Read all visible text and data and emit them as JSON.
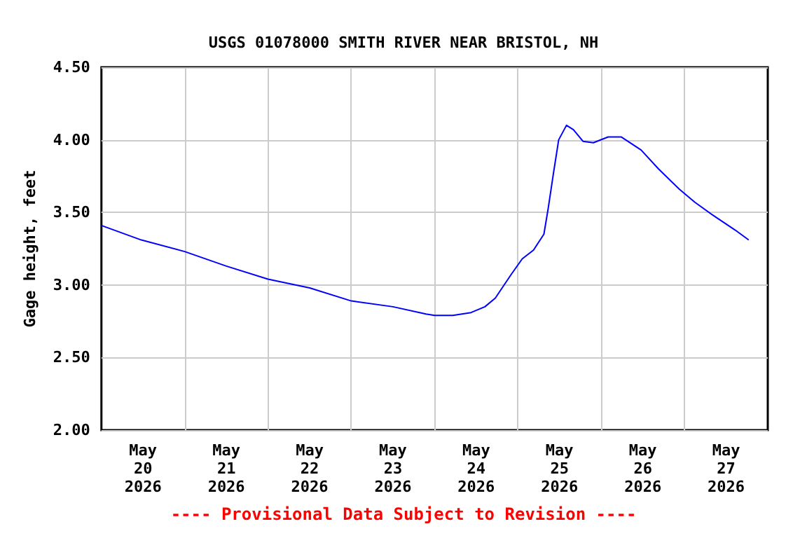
{
  "chart_data": {
    "type": "line",
    "title": "USGS 01078000 SMITH RIVER NEAR BRISTOL, NH",
    "ylabel": "Gage height, feet",
    "annotations": [
      "---- Provisional Data Subject to Revision ----"
    ],
    "x": [
      "2026-05-20T00:00",
      "2026-05-20T11:30",
      "2026-05-21T00:00",
      "2026-05-21T12:00",
      "2026-05-22T00:00",
      "2026-05-22T12:00",
      "2026-05-23T00:00",
      "2026-05-23T12:00",
      "2026-05-23T21:30",
      "2026-05-24T00:00",
      "2026-05-24T05:15",
      "2026-05-24T10:30",
      "2026-05-24T14:30",
      "2026-05-24T17:30",
      "2026-05-24T22:00",
      "2026-05-25T01:15",
      "2026-05-25T04:30",
      "2026-05-25T07:30",
      "2026-05-25T08:45",
      "2026-05-25T10:15",
      "2026-05-25T11:45",
      "2026-05-25T14:00",
      "2026-05-25T16:00",
      "2026-05-25T18:45",
      "2026-05-25T21:45",
      "2026-05-26T02:00",
      "2026-05-26T05:45",
      "2026-05-26T11:30",
      "2026-05-26T16:30",
      "2026-05-26T22:30",
      "2026-05-27T03:00",
      "2026-05-27T08:15",
      "2026-05-27T14:30",
      "2026-05-27T18:30"
    ],
    "series": [
      {
        "color": "#0000ff",
        "values": [
          3.41,
          3.31,
          3.23,
          3.13,
          3.04,
          2.98,
          2.89,
          2.85,
          2.8,
          2.79,
          2.79,
          2.81,
          2.85,
          2.91,
          3.07,
          3.18,
          3.24,
          3.35,
          3.53,
          3.77,
          4.0,
          4.1,
          4.07,
          3.99,
          3.98,
          4.02,
          4.02,
          3.93,
          3.8,
          3.66,
          3.57,
          3.48,
          3.38,
          3.31
        ]
      }
    ],
    "xlim": [
      "2026-05-20T00:00",
      "2026-05-28T00:00"
    ],
    "xticks": [
      {
        "value": "2026-05-20T12:00",
        "label": "May\n20\n2026"
      },
      {
        "value": "2026-05-21T00:00",
        "label": null
      },
      {
        "value": "2026-05-21T12:00",
        "label": "May\n21\n2026"
      },
      {
        "value": "2026-05-22T00:00",
        "label": null
      },
      {
        "value": "2026-05-22T12:00",
        "label": "May\n22\n2026"
      },
      {
        "value": "2026-05-23T00:00",
        "label": null
      },
      {
        "value": "2026-05-23T12:00",
        "label": "May\n23\n2026"
      },
      {
        "value": "2026-05-24T00:00",
        "label": null
      },
      {
        "value": "2026-05-24T12:00",
        "label": "May\n24\n2026"
      },
      {
        "value": "2026-05-25T00:00",
        "label": null
      },
      {
        "value": "2026-05-25T12:00",
        "label": "May\n25\n2026"
      },
      {
        "value": "2026-05-26T00:00",
        "label": null
      },
      {
        "value": "2026-05-26T12:00",
        "label": "May\n26\n2026"
      },
      {
        "value": "2026-05-27T00:00",
        "label": null
      },
      {
        "value": "2026-05-27T12:00",
        "label": "May\n27\n2026"
      }
    ],
    "ylim": [
      2.0,
      4.5
    ],
    "yticks": [
      {
        "value": 2.0,
        "label": "2.00"
      },
      {
        "value": 2.5,
        "label": "2.50"
      },
      {
        "value": 3.0,
        "label": "3.00"
      },
      {
        "value": 3.5,
        "label": "3.50"
      },
      {
        "value": 4.0,
        "label": "4.00"
      },
      {
        "value": 4.5,
        "label": "4.50"
      }
    ],
    "grid": true
  }
}
